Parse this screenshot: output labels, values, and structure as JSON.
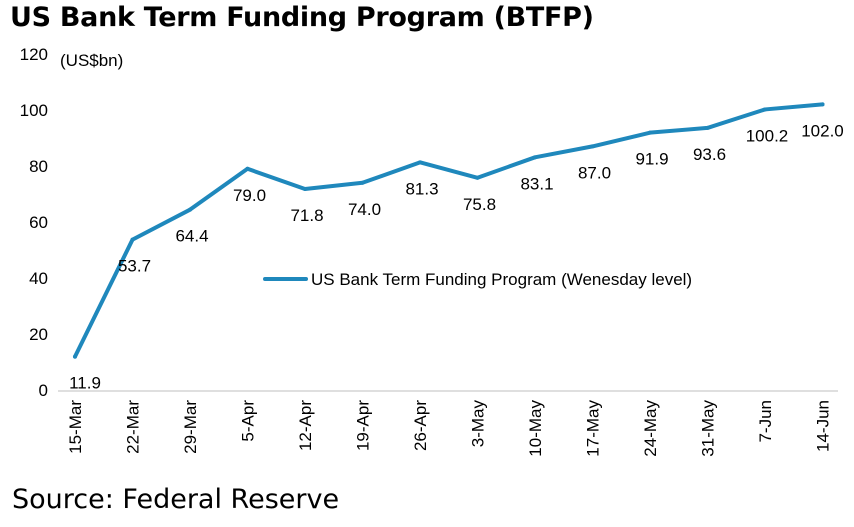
{
  "title": "US Bank Term Funding Program (BTFP)",
  "source": "Source: Federal Reserve",
  "chart_data": {
    "type": "line",
    "title": "US Bank Term Funding Program (BTFP)",
    "unit_label": "(US$bn)",
    "categories": [
      "15-Mar",
      "22-Mar",
      "29-Mar",
      "5-Apr",
      "12-Apr",
      "19-Apr",
      "26-Apr",
      "3-May",
      "10-May",
      "17-May",
      "24-May",
      "31-May",
      "7-Jun",
      "14-Jun"
    ],
    "series": [
      {
        "name": "US Bank Term Funding Program (Wenesday level)",
        "values": [
          11.9,
          53.7,
          64.4,
          79.0,
          71.8,
          74.0,
          81.3,
          75.8,
          83.1,
          87.0,
          91.9,
          93.6,
          100.2,
          102.0
        ],
        "labels": [
          "11.9",
          "53.7",
          "64.4",
          "79.0",
          "71.8",
          "74.0",
          "81.3",
          "75.8",
          "83.1",
          "87.0",
          "91.9",
          "93.6",
          "100.2",
          "102.0"
        ],
        "color": "#1F88BC"
      }
    ],
    "yticks": [
      0,
      20,
      40,
      60,
      80,
      100,
      120
    ],
    "ylim": [
      0,
      120
    ],
    "grid": false,
    "legend_position": "center-right"
  }
}
